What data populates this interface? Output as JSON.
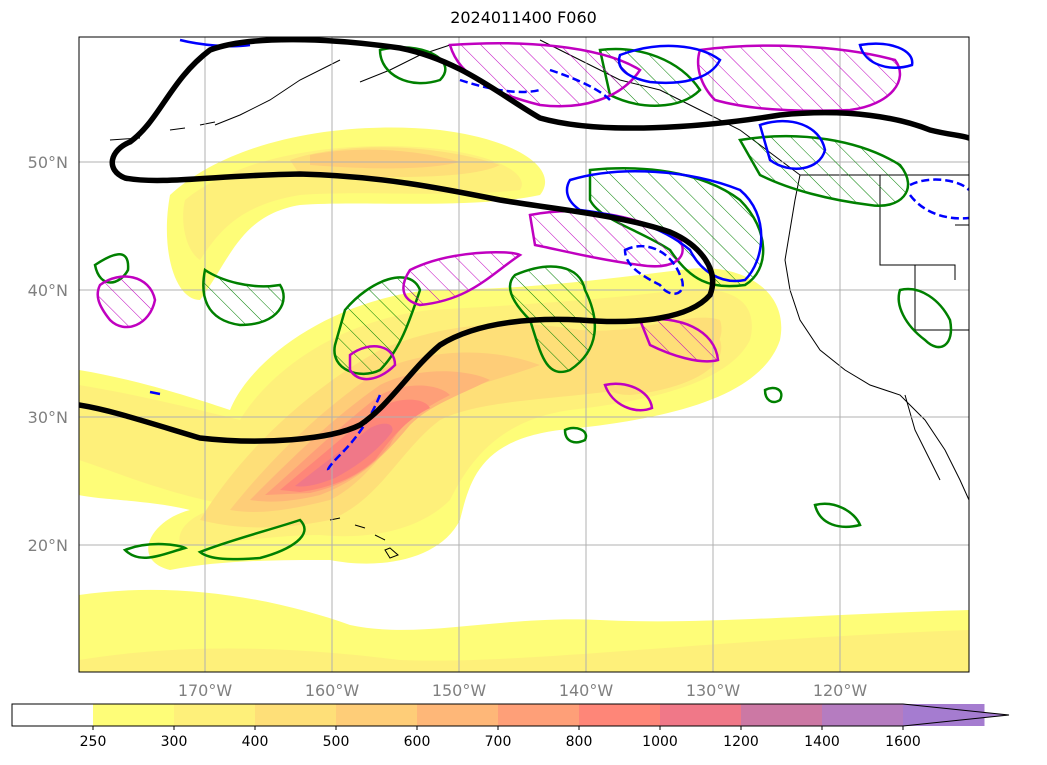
{
  "title": "2024011400 F060",
  "lat_labels": [
    "50°N",
    "40°N",
    "30°N",
    "20°N"
  ],
  "lon_labels": [
    "170°W",
    "160°W",
    "150°W",
    "140°W",
    "130°W",
    "120°W"
  ],
  "colorbar": {
    "ticks": [
      "250",
      "300",
      "400",
      "500",
      "600",
      "700",
      "800",
      "1000",
      "1200",
      "1400",
      "1600"
    ],
    "colors": [
      "#ffffff",
      "#fefd78",
      "#fef07a",
      "#fedf78",
      "#fecd78",
      "#feb778",
      "#fe9f78",
      "#fe8678",
      "#f07888",
      "#cc78a4",
      "#b57cc0",
      "#a57cd0"
    ]
  },
  "colors": {
    "contour_black": "#000000",
    "contour_green": "#008000",
    "contour_magenta": "#c000c0",
    "contour_blue": "#0000ff",
    "grid": "#b0b0b0",
    "axis_text": "#808080"
  }
}
